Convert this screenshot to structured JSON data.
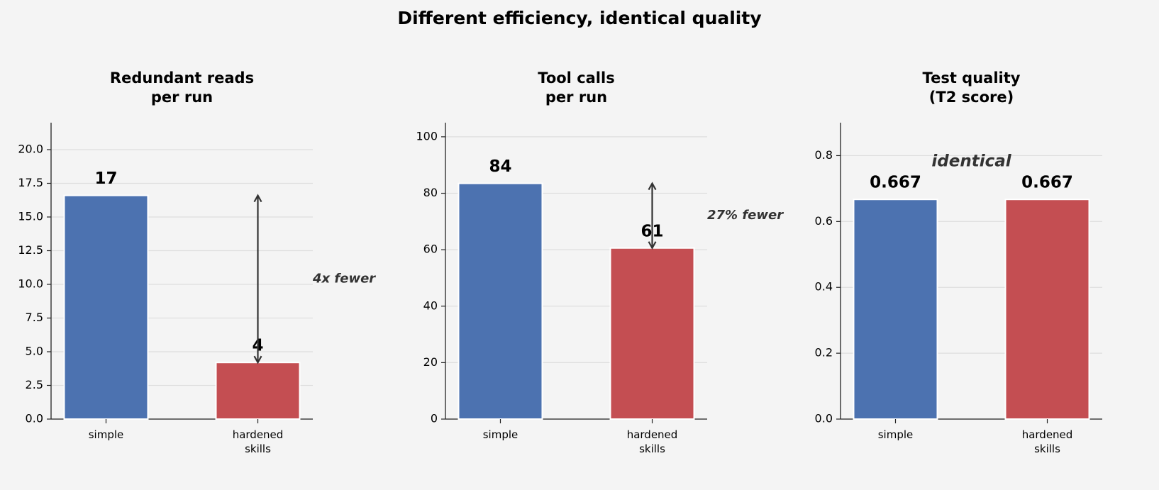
{
  "title": "Different efficiency, identical quality",
  "chart_data": [
    {
      "type": "bar",
      "title": "Redundant reads\nper run",
      "categories": [
        "simple",
        "hardened\nskills"
      ],
      "values": [
        16.6,
        4.2
      ],
      "value_labels": [
        "17",
        "4"
      ],
      "colors": [
        "#4c72b0",
        "#c44e52"
      ],
      "ylim": [
        0,
        22
      ],
      "yticks": [
        {
          "value": 0,
          "label": "0.0"
        },
        2.5,
        {
          "value": 5,
          "label": "5.0"
        },
        7.5,
        {
          "value": 10,
          "label": "10.0"
        },
        12.5,
        {
          "value": 15,
          "label": "15.0"
        },
        17.5,
        {
          "value": 20,
          "label": "20.0"
        }
      ],
      "grid": true,
      "annotation": "4x fewer"
    },
    {
      "type": "bar",
      "title": "Tool calls\nper run",
      "categories": [
        "simple",
        "hardened\nskills"
      ],
      "values": [
        83.5,
        60.6
      ],
      "value_labels": [
        "84",
        "61"
      ],
      "colors": [
        "#4c72b0",
        "#c44e52"
      ],
      "ylim": [
        0,
        105
      ],
      "yticks": [
        0,
        20,
        40,
        60,
        80,
        100
      ],
      "grid": true,
      "annotation": "27% fewer"
    },
    {
      "type": "bar",
      "title": "Test quality\n(T2 score)",
      "categories": [
        "simple",
        "hardened\nskills"
      ],
      "values": [
        0.667,
        0.667
      ],
      "colors": [
        "#4c72b0",
        "#c44e52"
      ],
      "ylim": [
        0,
        0.9
      ],
      "yticks": [
        {
          "value": 0,
          "label": "0.0"
        },
        0.2,
        0.4,
        0.6,
        0.8
      ],
      "grid": true,
      "annotation": "identical"
    }
  ]
}
